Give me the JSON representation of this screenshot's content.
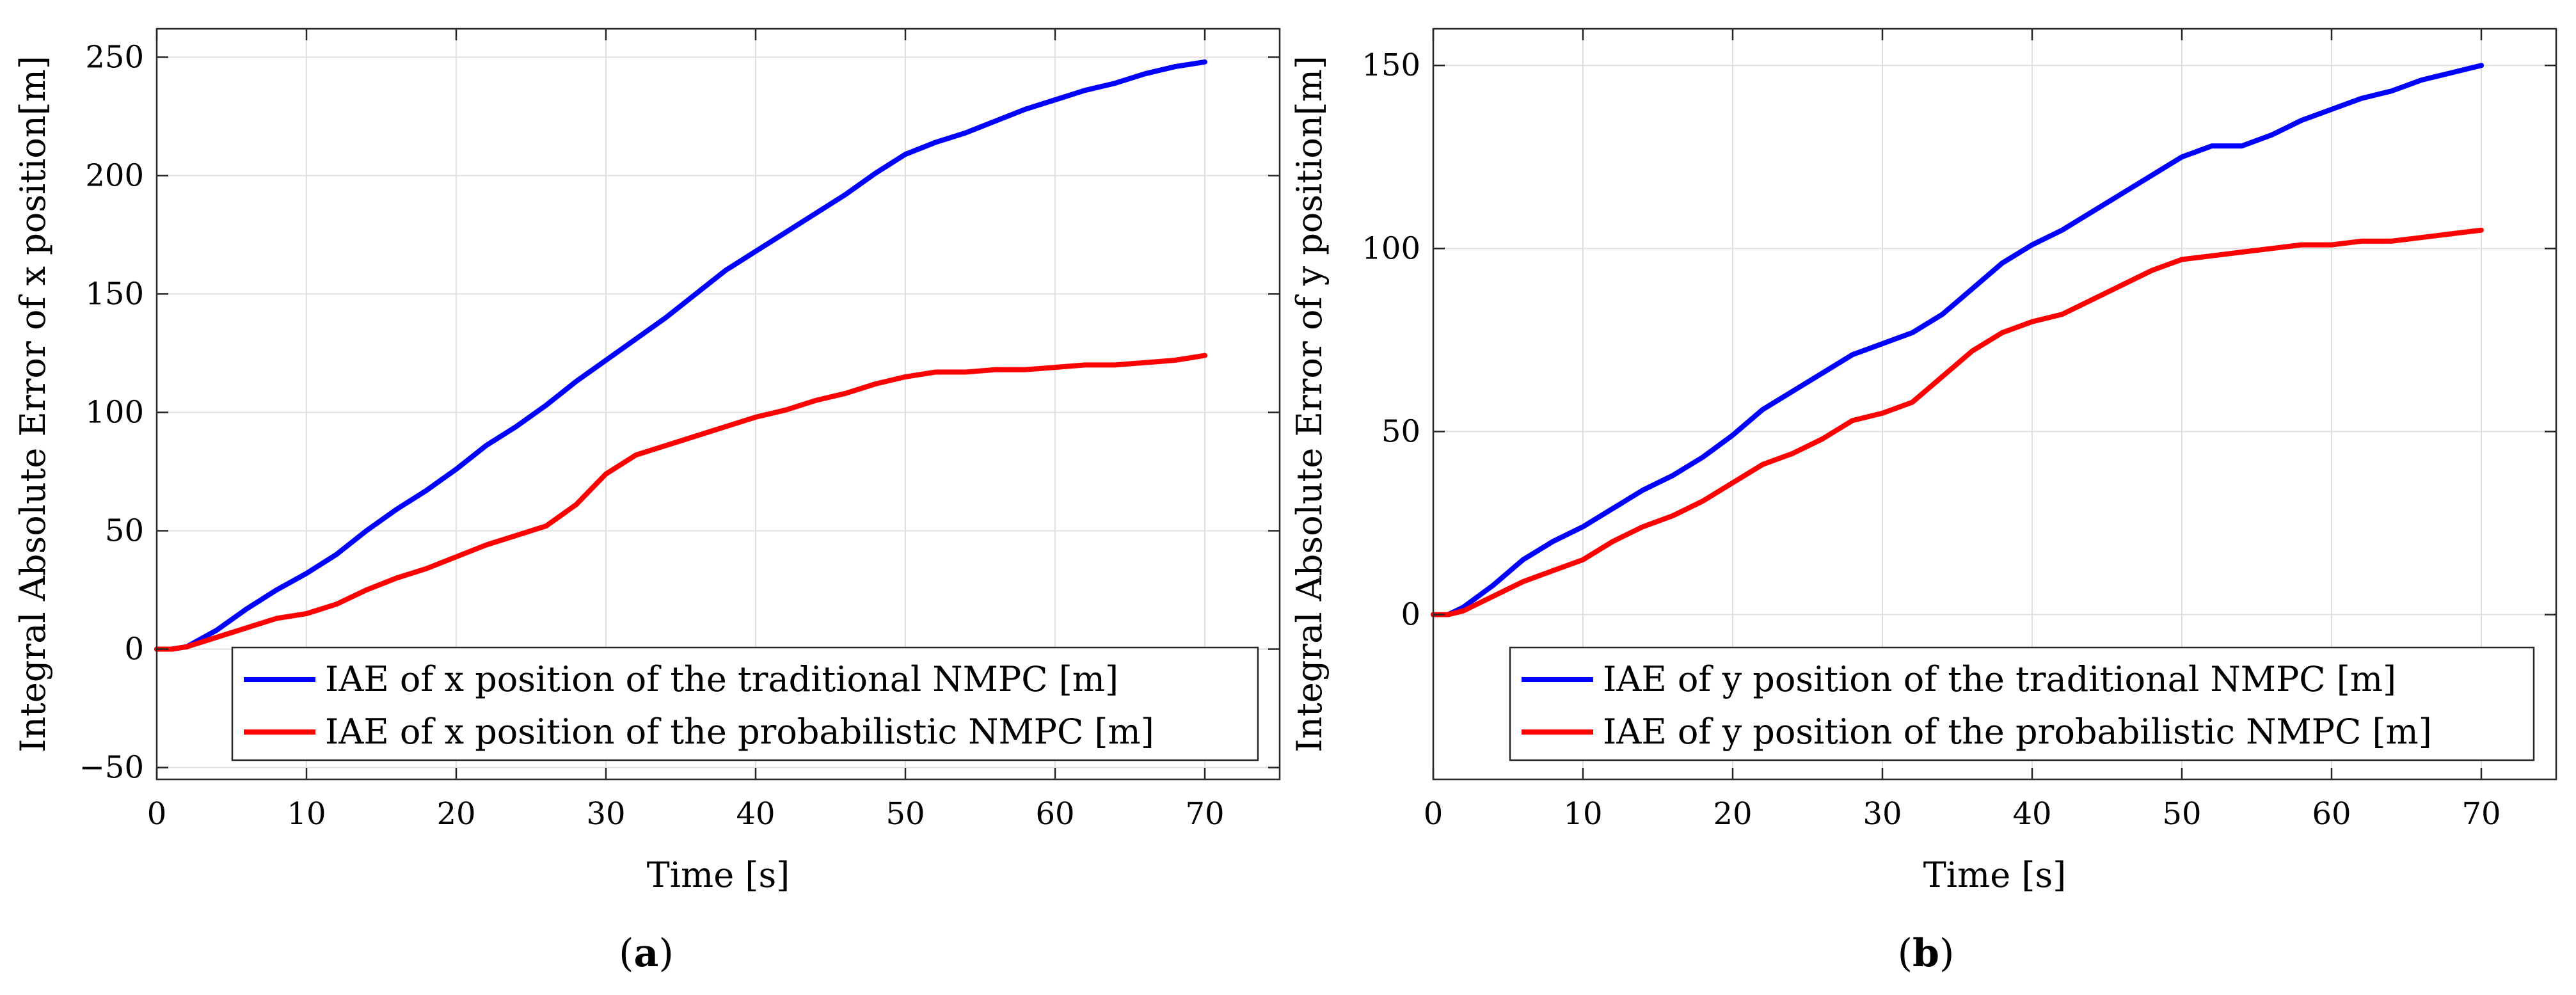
{
  "chart_data": [
    {
      "type": "line",
      "panel_label": "a",
      "caption_open": "(",
      "caption_close": ")",
      "xlabel": "Time [s]",
      "ylabel": "Integral Absolute Error of x position[m]",
      "xlim": [
        0,
        75
      ],
      "ylim": [
        -55,
        262
      ],
      "xticks": [
        0,
        10,
        20,
        30,
        40,
        50,
        60,
        70
      ],
      "yticks": [
        -50,
        0,
        50,
        100,
        150,
        200,
        250
      ],
      "grid": true,
      "legend_position": "bottom-right",
      "series": [
        {
          "name": "IAE of x position of the traditional NMPC [m]",
          "color": "#0000ff",
          "x": [
            0,
            1,
            2,
            4,
            6,
            8,
            10,
            12,
            14,
            16,
            18,
            20,
            22,
            24,
            26,
            28,
            30,
            32,
            34,
            36,
            38,
            40,
            42,
            44,
            46,
            48,
            50,
            52,
            54,
            56,
            58,
            60,
            62,
            64,
            66,
            68,
            70
          ],
          "y": [
            0,
            0,
            1,
            8,
            17,
            25,
            32,
            40,
            50,
            59,
            67,
            76,
            86,
            94,
            103,
            113,
            122,
            131,
            140,
            150,
            160,
            168,
            176,
            184,
            192,
            201,
            209,
            214,
            218,
            223,
            228,
            232,
            236,
            239,
            243,
            246,
            248
          ]
        },
        {
          "name": "IAE of x position of the probabilistic NMPC [m]",
          "color": "#ff0000",
          "x": [
            0,
            1,
            2,
            4,
            6,
            8,
            10,
            12,
            14,
            16,
            18,
            20,
            22,
            24,
            26,
            28,
            30,
            32,
            34,
            36,
            38,
            40,
            42,
            44,
            46,
            48,
            50,
            52,
            54,
            56,
            58,
            60,
            62,
            64,
            66,
            68,
            70
          ],
          "y": [
            0,
            0,
            1,
            5,
            9,
            13,
            15,
            19,
            25,
            30,
            34,
            39,
            44,
            48,
            52,
            61,
            74,
            82,
            86,
            90,
            94,
            98,
            101,
            105,
            108,
            112,
            115,
            117,
            117,
            118,
            118,
            119,
            120,
            120,
            121,
            122,
            124
          ]
        }
      ]
    },
    {
      "type": "line",
      "panel_label": "b",
      "caption_open": "(",
      "caption_close": ")",
      "xlabel": "Time [s]",
      "ylabel": "Integral Absolute Error of y position[m]",
      "xlim": [
        0,
        75
      ],
      "ylim": [
        -45,
        160
      ],
      "xticks": [
        0,
        10,
        20,
        30,
        40,
        50,
        60,
        70
      ],
      "yticks": [
        0,
        50,
        100,
        150
      ],
      "grid": true,
      "legend_position": "bottom-right",
      "series": [
        {
          "name": "IAE of y position of the traditional NMPC [m]",
          "color": "#0000ff",
          "x": [
            0,
            1,
            2,
            4,
            6,
            8,
            10,
            12,
            14,
            16,
            18,
            20,
            22,
            24,
            26,
            28,
            30,
            32,
            34,
            36,
            38,
            40,
            42,
            44,
            46,
            48,
            50,
            52,
            54,
            56,
            58,
            60,
            62,
            64,
            66,
            68,
            70
          ],
          "y": [
            0,
            0,
            2,
            8,
            15,
            20,
            24,
            29,
            34,
            38,
            43,
            49,
            56,
            61,
            66,
            71,
            74,
            77,
            82,
            89,
            96,
            101,
            105,
            110,
            115,
            120,
            125,
            128,
            128,
            131,
            135,
            138,
            141,
            143,
            146,
            148,
            150
          ]
        },
        {
          "name": "IAE of y position of the probabilistic NMPC [m]",
          "color": "#ff0000",
          "x": [
            0,
            1,
            2,
            4,
            6,
            8,
            10,
            12,
            14,
            16,
            18,
            20,
            22,
            24,
            26,
            28,
            30,
            32,
            34,
            36,
            38,
            40,
            42,
            44,
            46,
            48,
            50,
            52,
            54,
            56,
            58,
            60,
            62,
            64,
            66,
            68,
            70
          ],
          "y": [
            0,
            0,
            1,
            5,
            9,
            12,
            15,
            20,
            24,
            27,
            31,
            36,
            41,
            44,
            48,
            53,
            55,
            58,
            65,
            72,
            77,
            80,
            82,
            86,
            90,
            94,
            97,
            98,
            99,
            100,
            101,
            101,
            102,
            102,
            103,
            104,
            105
          ]
        }
      ]
    }
  ]
}
